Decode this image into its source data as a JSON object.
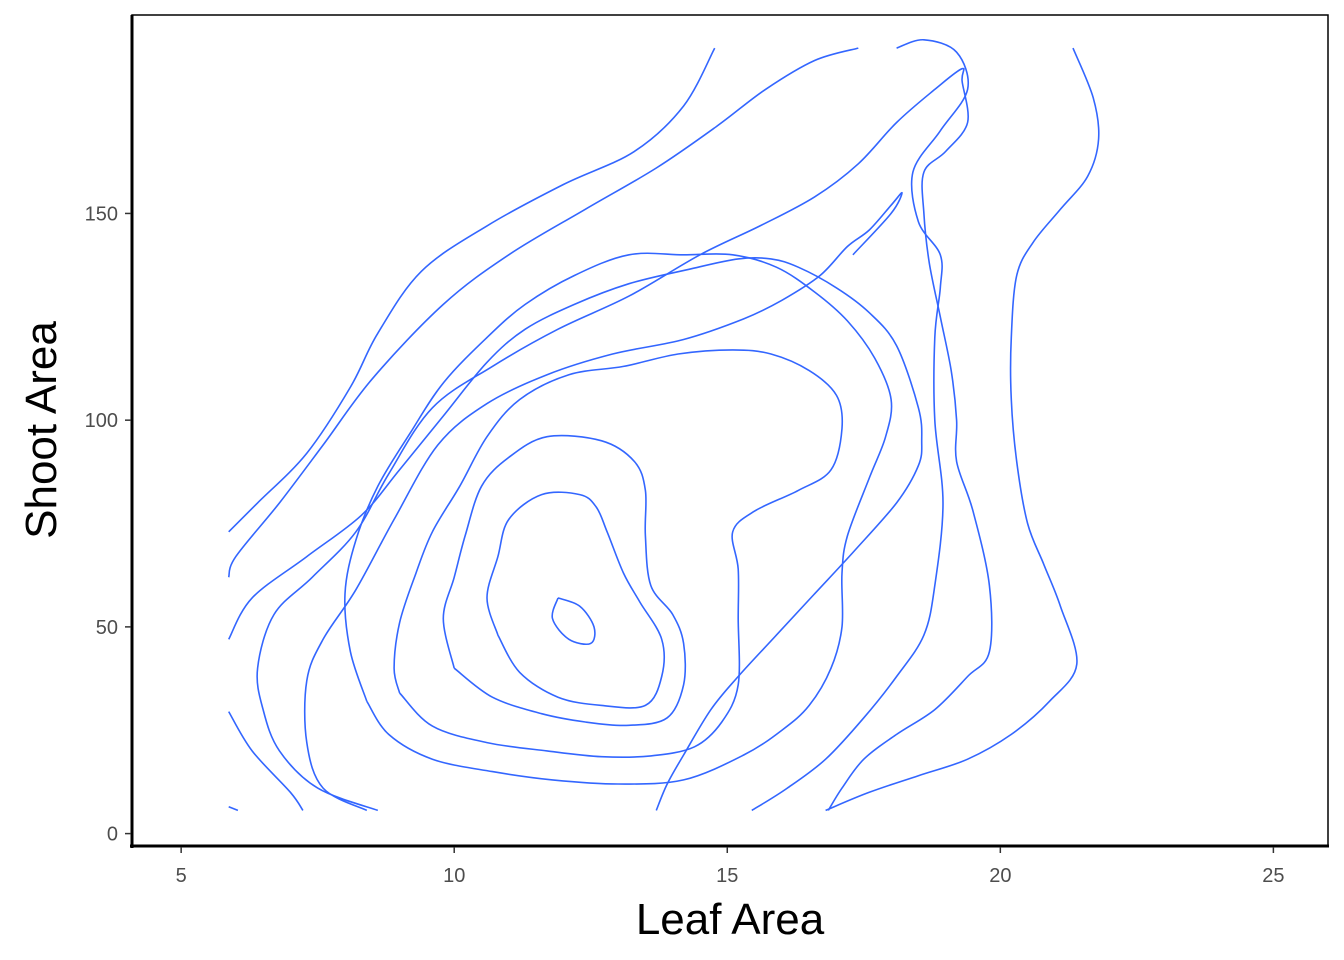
{
  "chart_data": {
    "type": "line",
    "subtype": "2d-density-contour",
    "xlabel": "Leaf Area",
    "ylabel": "Shoot Area",
    "xlim": [
      4.1,
      26.0
    ],
    "ylim": [
      -3.0,
      198.0
    ],
    "xticks": [
      5,
      10,
      15,
      20,
      25
    ],
    "yticks": [
      0,
      50,
      100,
      150
    ],
    "grid": false,
    "legend": "none",
    "line_color": "#3366ff",
    "contours": [
      {
        "level": 1,
        "points": [
          [
            5.87,
            6.5
          ],
          [
            6.04,
            5.6
          ]
        ]
      },
      {
        "level": 2,
        "points": [
          [
            5.87,
            29.5
          ],
          [
            6.3,
            20
          ],
          [
            7.0,
            10
          ],
          [
            7.23,
            5.6
          ]
        ]
      },
      {
        "level": 3,
        "points": [
          [
            5.87,
            47
          ],
          [
            6.3,
            57
          ],
          [
            7.3,
            67
          ],
          [
            8.3,
            77
          ],
          [
            9.0,
            88
          ],
          [
            9.8,
            101
          ],
          [
            10.6,
            114
          ],
          [
            11.3,
            122
          ],
          [
            12.2,
            128
          ],
          [
            13.2,
            133
          ],
          [
            14.3,
            136.5
          ],
          [
            15.2,
            139
          ],
          [
            15.8,
            139
          ],
          [
            16.3,
            137
          ],
          [
            17.0,
            132
          ],
          [
            17.6,
            126
          ],
          [
            18.1,
            118
          ],
          [
            18.5,
            103
          ],
          [
            18.56,
            95
          ],
          [
            18.5,
            89
          ],
          [
            18.1,
            80
          ],
          [
            17.3,
            68
          ],
          [
            16.6,
            58
          ],
          [
            15.9,
            48
          ],
          [
            15.2,
            38
          ],
          [
            14.7,
            30
          ],
          [
            14.2,
            19
          ],
          [
            13.9,
            12
          ],
          [
            13.7,
            5.6
          ]
        ]
      },
      {
        "level": 4,
        "points": [
          [
            5.87,
            73
          ],
          [
            6.4,
            80
          ],
          [
            7.3,
            92
          ],
          [
            8.1,
            108
          ],
          [
            8.6,
            121
          ],
          [
            9.4,
            136
          ],
          [
            10.6,
            147
          ],
          [
            12.0,
            157
          ],
          [
            13.3,
            165
          ],
          [
            14.2,
            176
          ],
          [
            14.77,
            190
          ]
        ]
      },
      {
        "level": 5,
        "points": [
          [
            8.6,
            5.6
          ],
          [
            7.5,
            11
          ],
          [
            6.8,
            20
          ],
          [
            6.5,
            30
          ],
          [
            6.4,
            40
          ],
          [
            6.7,
            53
          ],
          [
            7.4,
            62
          ],
          [
            8.2,
            73
          ],
          [
            8.8,
            87
          ],
          [
            9.6,
            103
          ],
          [
            10.7,
            113
          ],
          [
            11.9,
            122
          ],
          [
            13.2,
            130
          ],
          [
            14.5,
            140
          ],
          [
            15.6,
            147
          ],
          [
            16.6,
            154
          ],
          [
            17.4,
            162
          ],
          [
            18.1,
            172
          ],
          [
            18.8,
            180
          ],
          [
            19.3,
            185
          ],
          [
            19.3,
            182
          ],
          [
            19.4,
            172
          ],
          [
            19.0,
            165
          ],
          [
            18.6,
            160
          ],
          [
            18.6,
            150
          ],
          [
            18.7,
            138
          ],
          [
            18.9,
            125
          ],
          [
            19.1,
            112
          ],
          [
            19.2,
            100
          ],
          [
            19.2,
            90
          ],
          [
            19.5,
            78
          ],
          [
            19.8,
            60
          ],
          [
            19.8,
            44
          ],
          [
            19.4,
            38
          ],
          [
            18.8,
            30
          ],
          [
            18.1,
            24
          ],
          [
            17.5,
            18
          ],
          [
            17.1,
            11
          ],
          [
            16.85,
            5.6
          ]
        ]
      },
      {
        "level": 6,
        "points": [
          [
            16.8,
            5.6
          ],
          [
            17.6,
            10
          ],
          [
            18.5,
            14
          ],
          [
            19.4,
            18
          ],
          [
            20.2,
            24
          ],
          [
            20.9,
            32
          ],
          [
            21.4,
            41
          ],
          [
            21.1,
            55
          ],
          [
            20.8,
            65
          ],
          [
            20.5,
            75
          ],
          [
            20.3,
            90
          ],
          [
            20.2,
            105
          ],
          [
            20.2,
            120
          ],
          [
            20.3,
            135
          ],
          [
            20.6,
            143
          ],
          [
            21.1,
            151
          ],
          [
            21.6,
            159
          ],
          [
            21.8,
            168
          ],
          [
            21.7,
            178
          ],
          [
            21.33,
            190
          ]
        ]
      },
      {
        "level": 7,
        "points": [
          [
            15.45,
            5.6
          ],
          [
            16.1,
            11
          ],
          [
            16.8,
            18
          ],
          [
            17.5,
            28
          ],
          [
            18.1,
            38
          ],
          [
            18.6,
            48
          ],
          [
            18.8,
            60
          ],
          [
            18.95,
            80
          ],
          [
            18.8,
            100
          ],
          [
            18.8,
            120
          ],
          [
            18.9,
            132
          ],
          [
            18.9,
            140
          ],
          [
            18.5,
            148
          ],
          [
            18.4,
            160
          ],
          [
            18.9,
            170
          ],
          [
            19.4,
            180
          ],
          [
            19.2,
            189
          ],
          [
            18.6,
            192
          ],
          [
            18.1,
            190
          ]
        ]
      },
      {
        "level": 8,
        "points": [
          [
            17.4,
            190
          ],
          [
            16.6,
            187
          ],
          [
            15.7,
            180
          ],
          [
            14.8,
            171
          ],
          [
            13.7,
            161
          ],
          [
            12.4,
            151
          ],
          [
            11.0,
            140
          ],
          [
            9.8,
            128
          ],
          [
            8.5,
            110
          ],
          [
            7.6,
            94
          ],
          [
            6.8,
            80
          ],
          [
            6.0,
            67
          ],
          [
            5.87,
            62
          ]
        ]
      },
      {
        "level": 9,
        "points": [
          [
            8.4,
            5.6
          ],
          [
            7.6,
            11
          ],
          [
            7.3,
            22
          ],
          [
            7.3,
            37
          ],
          [
            7.6,
            47
          ],
          [
            8.2,
            59
          ],
          [
            8.9,
            76
          ],
          [
            9.7,
            94
          ],
          [
            10.6,
            104
          ],
          [
            11.7,
            111
          ],
          [
            12.9,
            116
          ],
          [
            14.2,
            119.5
          ],
          [
            15.3,
            124.5
          ],
          [
            16.0,
            129
          ],
          [
            16.7,
            135
          ],
          [
            17.2,
            142
          ],
          [
            17.6,
            146
          ],
          [
            18.0,
            152
          ],
          [
            18.2,
            155
          ],
          [
            18.0,
            150
          ],
          [
            17.3,
            140
          ]
        ]
      },
      {
        "level": 10,
        "points": [
          [
            8.4,
            32
          ],
          [
            8.8,
            24
          ],
          [
            9.6,
            18
          ],
          [
            10.7,
            15
          ],
          [
            11.8,
            13
          ],
          [
            13.0,
            12
          ],
          [
            14.2,
            13
          ],
          [
            15.3,
            19
          ],
          [
            16.0,
            25
          ],
          [
            16.5,
            31
          ],
          [
            16.9,
            40
          ],
          [
            17.1,
            50
          ],
          [
            17.1,
            63
          ],
          [
            17.2,
            72
          ],
          [
            17.6,
            86
          ],
          [
            17.9,
            96
          ],
          [
            18.0,
            105
          ],
          [
            17.7,
            115
          ],
          [
            17.2,
            124
          ],
          [
            16.6,
            131
          ],
          [
            15.9,
            137
          ],
          [
            15.1,
            140
          ],
          [
            14.2,
            140
          ],
          [
            13.2,
            140
          ],
          [
            12.2,
            135
          ],
          [
            11.3,
            128
          ],
          [
            10.6,
            120
          ],
          [
            9.8,
            109
          ],
          [
            9.2,
            97
          ],
          [
            8.6,
            84
          ],
          [
            8.2,
            71
          ],
          [
            8.0,
            58
          ],
          [
            8.1,
            44
          ],
          [
            8.4,
            32
          ]
        ]
      },
      {
        "level": 11,
        "points": [
          [
            9.0,
            34
          ],
          [
            9.6,
            26
          ],
          [
            10.6,
            22
          ],
          [
            11.7,
            20
          ],
          [
            12.7,
            18.6
          ],
          [
            13.6,
            18.8
          ],
          [
            14.4,
            21
          ],
          [
            14.9,
            27
          ],
          [
            15.2,
            36
          ],
          [
            15.2,
            52
          ],
          [
            15.2,
            64
          ],
          [
            15.1,
            73
          ],
          [
            15.5,
            78
          ],
          [
            16.3,
            83
          ],
          [
            16.9,
            88
          ],
          [
            17.1,
            98
          ],
          [
            17.0,
            106
          ],
          [
            16.5,
            112
          ],
          [
            15.8,
            116
          ],
          [
            15.1,
            117
          ],
          [
            14.1,
            116
          ],
          [
            13.1,
            113
          ],
          [
            12.1,
            111
          ],
          [
            11.2,
            105
          ],
          [
            10.6,
            96
          ],
          [
            10.1,
            84
          ],
          [
            9.6,
            73
          ],
          [
            9.3,
            63
          ],
          [
            9.0,
            51
          ],
          [
            8.9,
            40
          ],
          [
            9.0,
            34
          ]
        ]
      },
      {
        "level": 12,
        "points": [
          [
            10.0,
            40
          ],
          [
            10.7,
            33
          ],
          [
            11.6,
            29
          ],
          [
            12.4,
            27
          ],
          [
            13.2,
            26.2
          ],
          [
            13.9,
            28
          ],
          [
            14.2,
            36
          ],
          [
            14.2,
            46
          ],
          [
            14.0,
            53
          ],
          [
            13.6,
            60
          ],
          [
            13.5,
            72
          ],
          [
            13.5,
            83
          ],
          [
            13.3,
            90
          ],
          [
            12.7,
            95
          ],
          [
            11.7,
            96
          ],
          [
            11.0,
            91
          ],
          [
            10.5,
            84
          ],
          [
            10.2,
            72
          ],
          [
            10.0,
            62
          ],
          [
            9.8,
            52
          ],
          [
            10.0,
            40
          ]
        ]
      },
      {
        "level": 13,
        "points": [
          [
            10.8,
            48
          ],
          [
            11.2,
            39
          ],
          [
            11.9,
            33
          ],
          [
            12.7,
            31
          ],
          [
            13.5,
            31
          ],
          [
            13.8,
            38
          ],
          [
            13.8,
            47
          ],
          [
            13.4,
            56
          ],
          [
            13.1,
            63
          ],
          [
            12.8,
            73
          ],
          [
            12.6,
            79
          ],
          [
            12.3,
            82
          ],
          [
            11.6,
            82
          ],
          [
            11.0,
            76
          ],
          [
            10.8,
            67
          ],
          [
            10.6,
            57
          ],
          [
            10.8,
            48
          ]
        ]
      },
      {
        "level": 14,
        "points": [
          [
            11.9,
            57
          ],
          [
            12.3,
            55
          ],
          [
            12.56,
            50
          ],
          [
            12.5,
            46
          ],
          [
            12.1,
            47
          ],
          [
            11.8,
            52
          ],
          [
            11.9,
            57
          ]
        ]
      }
    ]
  }
}
